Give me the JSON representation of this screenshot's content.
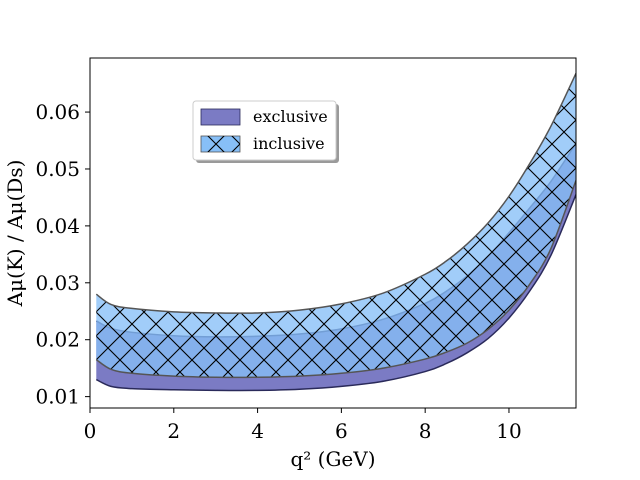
{
  "chart_data": {
    "type": "area",
    "xlabel": "q² (GeV)",
    "ylabel": "Aμ(K) / Aμ(Ds)",
    "xlim": [
      0,
      11.6
    ],
    "ylim": [
      0.008,
      0.0695
    ],
    "x_ticks": [
      0,
      2,
      4,
      6,
      8,
      10
    ],
    "x_tick_labels": [
      "0",
      "2",
      "4",
      "6",
      "8",
      "10"
    ],
    "y_ticks": [
      0.01,
      0.02,
      0.03,
      0.04,
      0.05,
      0.06
    ],
    "y_tick_labels": [
      "0.01",
      "0.02",
      "0.03",
      "0.04",
      "0.05",
      "0.06"
    ],
    "grid": false,
    "legend": {
      "placement": "upper-left-center"
    },
    "series": [
      {
        "name": "exclusive",
        "fill": "#7b7bc4",
        "edge": "#2a2a5a",
        "hatch": "none",
        "x": [
          0.15,
          0.5,
          1,
          2,
          3,
          4,
          5,
          6,
          7,
          8,
          8.5,
          9,
          9.5,
          10,
          10.5,
          11,
          11.6
        ],
        "lower": [
          0.013,
          0.0118,
          0.0114,
          0.0112,
          0.0111,
          0.0111,
          0.0113,
          0.0118,
          0.0127,
          0.0144,
          0.0158,
          0.0177,
          0.0202,
          0.0238,
          0.0286,
          0.0348,
          0.0455
        ],
        "upper": [
          0.0233,
          0.022,
          0.0213,
          0.0207,
          0.0205,
          0.0206,
          0.021,
          0.0219,
          0.0236,
          0.0264,
          0.0285,
          0.0312,
          0.0346,
          0.0388,
          0.0432,
          0.0478,
          0.0545
        ]
      },
      {
        "name": "inclusive",
        "fill": "#87bff7",
        "edge": "#555555",
        "hatch": "x",
        "x": [
          0.15,
          0.5,
          1,
          2,
          3,
          4,
          5,
          6,
          7,
          8,
          8.5,
          9,
          9.5,
          10,
          10.5,
          11,
          11.6
        ],
        "lower": [
          0.0165,
          0.0148,
          0.0141,
          0.0136,
          0.0134,
          0.0134,
          0.0136,
          0.0141,
          0.015,
          0.0166,
          0.0178,
          0.0194,
          0.0218,
          0.0252,
          0.0298,
          0.036,
          0.048
        ],
        "upper": [
          0.028,
          0.0262,
          0.0255,
          0.0249,
          0.0247,
          0.0247,
          0.0252,
          0.0263,
          0.0282,
          0.0315,
          0.0338,
          0.0368,
          0.0405,
          0.0452,
          0.051,
          0.0575,
          0.0668
        ]
      }
    ]
  }
}
